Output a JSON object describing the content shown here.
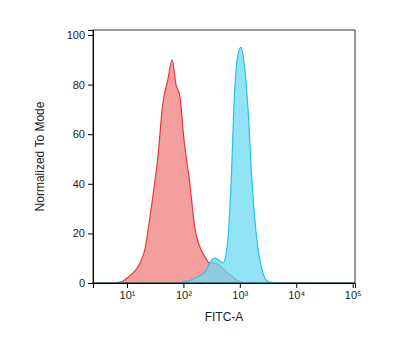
{
  "chart_data": {
    "type": "area",
    "x_label": "FITC-A",
    "y_label": "Normalized To Mode",
    "log": "x",
    "grid": false,
    "xlim": [
      2.5,
      110000
    ],
    "ylim": [
      0,
      102
    ],
    "xticks": [
      {
        "value": 10,
        "label": "10¹"
      },
      {
        "value": 100,
        "label": "10²"
      },
      {
        "value": 1000,
        "label": "10³"
      },
      {
        "value": 10000,
        "label": "10⁴"
      },
      {
        "value": 100000,
        "label": "10⁵"
      }
    ],
    "yticks": [
      0,
      20,
      40,
      60,
      80,
      100
    ],
    "x": [
      2.5,
      5,
      8,
      10,
      14,
      17,
      21,
      25,
      30,
      35,
      43,
      53,
      63,
      74,
      87,
      100,
      130,
      160,
      200,
      250,
      290,
      360,
      440,
      500,
      600,
      700,
      800,
      900,
      1040,
      1200,
      1400,
      1650,
      1950,
      2500,
      3200,
      5000,
      110000
    ],
    "series": [
      {
        "color": "#e8393a",
        "values": [
          0,
          0,
          0.5,
          2,
          5,
          8,
          14,
          25,
          38,
          50,
          72,
          82,
          90,
          80,
          75,
          60,
          40,
          22,
          14,
          10,
          8,
          8,
          7,
          6,
          4,
          3,
          2,
          1,
          0.5,
          0,
          0,
          0,
          0,
          0,
          0,
          0,
          0
        ]
      },
      {
        "color": "#22c4ec",
        "values": [
          0,
          0,
          0,
          0,
          0,
          0,
          0,
          0,
          0,
          0,
          0,
          0,
          0,
          0,
          0,
          0.5,
          1,
          2,
          3,
          5,
          8,
          10,
          9,
          8,
          15,
          40,
          75,
          90,
          95,
          88,
          70,
          40,
          20,
          5,
          0.5,
          0,
          0
        ]
      }
    ]
  }
}
